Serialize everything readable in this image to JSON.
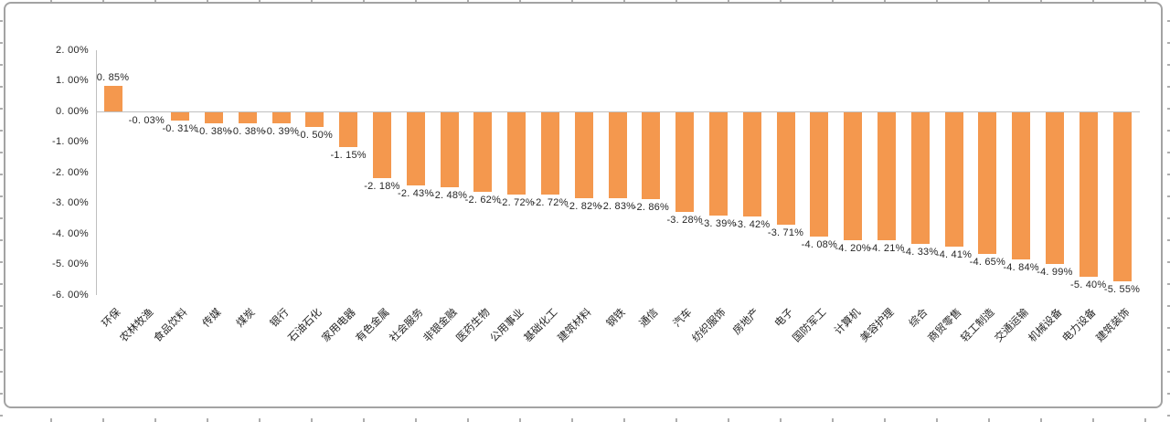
{
  "chart_data": {
    "type": "bar",
    "title": "",
    "xlabel": "",
    "ylabel": "",
    "grid": false,
    "legend": false,
    "bar_color": "#F4984E",
    "axis_color": "#BFBFBF",
    "text_color": "#262626",
    "category_label_rotation_deg": -45,
    "categories": [
      "环保",
      "农林牧渔",
      "食品饮料",
      "传媒",
      "煤炭",
      "银行",
      "石油石化",
      "家用电器",
      "有色金属",
      "社会服务",
      "非银金融",
      "医药生物",
      "公用事业",
      "基础化工",
      "建筑材料",
      "钢铁",
      "通信",
      "汽车",
      "纺织服饰",
      "房地产",
      "电子",
      "国防军工",
      "计算机",
      "美容护理",
      "综合",
      "商贸零售",
      "轻工制造",
      "交通运输",
      "机械设备",
      "电力设备",
      "建筑装饰"
    ],
    "values": [
      0.85,
      -0.03,
      -0.31,
      -0.38,
      -0.38,
      -0.39,
      -0.5,
      -1.15,
      -2.18,
      -2.43,
      -2.48,
      -2.62,
      -2.72,
      -2.72,
      -2.82,
      -2.83,
      -2.86,
      -3.28,
      -3.39,
      -3.42,
      -3.71,
      -4.08,
      -4.2,
      -4.21,
      -4.33,
      -4.41,
      -4.65,
      -4.84,
      -4.99,
      -5.4,
      -5.55
    ],
    "data_labels": [
      "0. 85%",
      "-0. 03%",
      "-0. 31%",
      "-0. 38%",
      "-0. 38%",
      "-0. 39%",
      "-0. 50%",
      "-1. 15%",
      "-2. 18%",
      "-2. 43%",
      "-2. 48%",
      "-2. 62%",
      "-2. 72%",
      "-2. 72%",
      "-2. 82%",
      "-2. 83%",
      "-2. 86%",
      "-3. 28%",
      "-3. 39%",
      "-3. 42%",
      "-3. 71%",
      "-4. 08%",
      "-4. 20%",
      "-4. 21%",
      "-4. 33%",
      "-4. 41%",
      "-4. 65%",
      "-4. 84%",
      "-4. 99%",
      "-5. 40%",
      "-5. 55%"
    ],
    "y_axis": {
      "tick_labels": [
        "2. 00%",
        "1. 00%",
        "0. 00%",
        "-1. 00%",
        "-2. 00%",
        "-3. 00%",
        "-4. 00%",
        "-5. 00%",
        "-6. 00%"
      ],
      "tick_values": [
        2,
        1,
        0,
        -1,
        -2,
        -3,
        -4,
        -5,
        -6
      ],
      "ylim": [
        -6,
        2
      ]
    }
  }
}
